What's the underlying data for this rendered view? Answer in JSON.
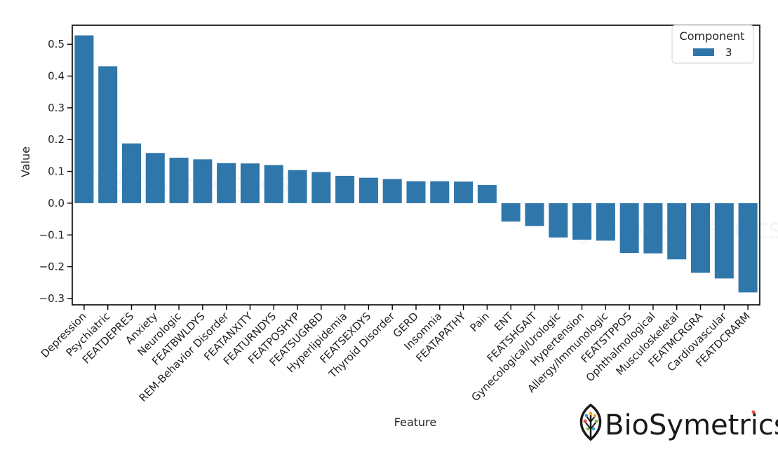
{
  "chart_data": {
    "type": "bar",
    "xlabel": "Feature",
    "ylabel": "Value",
    "ylim": [
      -0.32,
      0.56
    ],
    "yticks": [
      -0.3,
      -0.2,
      -0.1,
      0.0,
      0.1,
      0.2,
      0.3,
      0.4,
      0.5
    ],
    "ytick_labels": [
      "−0.3",
      "−0.2",
      "−0.1",
      "0.0",
      "0.1",
      "0.2",
      "0.3",
      "0.4",
      "0.5"
    ],
    "bar_color": "#2f77aa",
    "grid": false,
    "legend": {
      "title": "Component",
      "placement": "top-right",
      "entries": [
        "3"
      ]
    },
    "categories": [
      "Depression",
      "Psychiatric",
      "FEATDEPRES",
      "Anxiety",
      "Neurologic",
      "FEATBWLDYS",
      "REM-Behavior Disorder",
      "FEATANXITY",
      "FEATURNDYS",
      "FEATPOSHYP",
      "FEATSUGRBD",
      "Hyperlipidemia",
      "FEATSEXDYS",
      "Thyroid Disorder",
      "GERD",
      "Insomnia",
      "FEATAPATHY",
      "Pain",
      "ENT",
      "FEATSHGAIT",
      "Gynecological/Urologic",
      "Hypertension",
      "Allergy/Immunologic",
      "FEATSTPPOS",
      "Ophthalmological",
      "Musculoskeletal",
      "FEATMCRGRA",
      "Cardiovascular",
      "FEATDCRARM"
    ],
    "series": [
      {
        "name": "3",
        "values": [
          0.528,
          0.431,
          0.188,
          0.158,
          0.143,
          0.138,
          0.126,
          0.125,
          0.12,
          0.104,
          0.098,
          0.086,
          0.08,
          0.076,
          0.069,
          0.069,
          0.068,
          0.057,
          -0.058,
          -0.072,
          -0.108,
          -0.115,
          -0.118,
          -0.157,
          -0.158,
          -0.177,
          -0.219,
          -0.237,
          -0.281
        ]
      }
    ]
  },
  "brand": {
    "name": "BioSymetrics",
    "logo_icon": "leaf-tree-icon"
  }
}
